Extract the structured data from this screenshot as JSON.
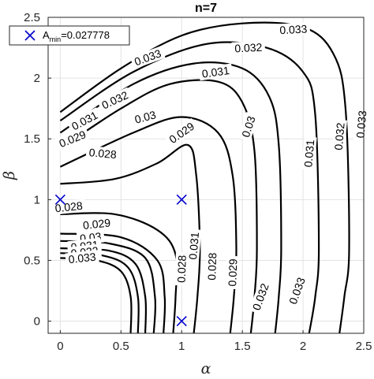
{
  "chart_data": {
    "type": "contour",
    "title": "n=7",
    "xlabel": "α",
    "ylabel": "β",
    "xlim": [
      -0.1,
      2.5
    ],
    "ylim": [
      -0.1,
      2.5
    ],
    "xticks": [
      0,
      0.5,
      1,
      1.5,
      2,
      2.5
    ],
    "xtick_labels": [
      "0",
      "0.5",
      "1",
      "1.5",
      "2",
      "2.5"
    ],
    "yticks": [
      0,
      0.5,
      1,
      1.5,
      2,
      2.5
    ],
    "ytick_labels": [
      "0",
      "0.5",
      "1",
      "1.5",
      "2",
      "2.5"
    ],
    "grid": true,
    "line_color": "#000000",
    "marker_color": "#0000CC",
    "legend": {
      "placement": "top-left",
      "marker": "x",
      "label_main": "A",
      "label_sub": "min",
      "label_value": "=0.027778"
    },
    "minimum_markers": [
      {
        "x": 0,
        "y": 1
      },
      {
        "x": 1,
        "y": 1
      },
      {
        "x": 1,
        "y": 0
      }
    ],
    "contours": [
      {
        "level": "0.028",
        "segments": [
          [
            [
              0,
              0.88
            ],
            [
              0.45,
              0.88
            ],
            [
              0.8,
              0.75
            ],
            [
              0.95,
              0.55
            ],
            [
              0.95,
              0.2
            ],
            [
              0.93,
              -0.1
            ]
          ],
          [
            [
              0,
              1.13
            ],
            [
              0.45,
              1.17
            ],
            [
              0.8,
              1.3
            ],
            [
              1.05,
              1.45
            ],
            [
              1.12,
              1.2
            ],
            [
              1.15,
              0.6
            ],
            [
              1.13,
              0.2
            ],
            [
              1.1,
              -0.1
            ]
          ]
        ],
        "labels": [
          {
            "text": "0.028",
            "x": 0.35,
            "y": 1.38,
            "angle": 5
          },
          {
            "text": "0.028",
            "x": 0.07,
            "y": 0.94,
            "angle": -6
          },
          {
            "text": "0.028",
            "x": 1.0,
            "y": 0.43,
            "angle": -88
          },
          {
            "text": "0.028",
            "x": 1.25,
            "y": 0.45,
            "angle": -88
          }
        ]
      },
      {
        "level": "0.029",
        "segments": [
          [
            [
              0,
              0.72
            ],
            [
              0.5,
              0.69
            ],
            [
              0.8,
              0.5
            ],
            [
              0.86,
              0.2
            ],
            [
              0.85,
              -0.1
            ]
          ],
          [
            [
              0,
              1.27
            ],
            [
              0.6,
              1.55
            ],
            [
              1.0,
              1.68
            ],
            [
              1.3,
              1.55
            ],
            [
              1.42,
              1.2
            ],
            [
              1.45,
              0.6
            ],
            [
              1.43,
              0.2
            ],
            [
              1.4,
              -0.1
            ]
          ]
        ],
        "labels": [
          {
            "text": "0.029",
            "x": 0.1,
            "y": 1.5,
            "angle": -22
          },
          {
            "text": "0.029",
            "x": 1.0,
            "y": 1.55,
            "angle": -35
          },
          {
            "text": "0.029",
            "x": 0.3,
            "y": 0.8,
            "angle": -6
          },
          {
            "text": "0.029",
            "x": 1.42,
            "y": 0.4,
            "angle": -88
          }
        ]
      },
      {
        "level": "0.03",
        "segments": [
          [
            [
              0,
              0.66
            ],
            [
              0.4,
              0.64
            ],
            [
              0.7,
              0.52
            ],
            [
              0.78,
              0.2
            ],
            [
              0.77,
              -0.1
            ]
          ],
          [
            [
              0,
              1.42
            ],
            [
              0.5,
              1.75
            ],
            [
              0.9,
              1.95
            ],
            [
              1.3,
              1.97
            ],
            [
              1.5,
              1.8
            ],
            [
              1.6,
              1.4
            ],
            [
              1.62,
              0.6
            ],
            [
              1.6,
              0.2
            ],
            [
              1.57,
              -0.1
            ]
          ]
        ],
        "labels": [
          {
            "text": "0.03",
            "x": 0.7,
            "y": 1.68,
            "angle": -15
          },
          {
            "text": "0.03",
            "x": 0.25,
            "y": 0.69,
            "angle": -6
          },
          {
            "text": "0.03",
            "x": 1.55,
            "y": 1.6,
            "angle": -72
          }
        ]
      },
      {
        "level": "0.031",
        "segments": [
          [
            [
              0,
              0.6
            ],
            [
              0.4,
              0.58
            ],
            [
              0.62,
              0.47
            ],
            [
              0.7,
              0.2
            ],
            [
              0.7,
              -0.1
            ]
          ],
          [
            [
              0,
              1.55
            ],
            [
              0.6,
              1.95
            ],
            [
              1.1,
              2.12
            ],
            [
              1.5,
              2.08
            ],
            [
              1.72,
              1.85
            ],
            [
              1.8,
              1.45
            ],
            [
              1.82,
              0.6
            ],
            [
              1.8,
              0.2
            ],
            [
              1.77,
              -0.1
            ]
          ]
        ],
        "labels": [
          {
            "text": "0.031",
            "x": 0.2,
            "y": 1.65,
            "angle": -28
          },
          {
            "text": "0.031",
            "x": 1.28,
            "y": 2.05,
            "angle": -8
          },
          {
            "text": "0.031",
            "x": 1.1,
            "y": 0.62,
            "angle": -85
          },
          {
            "text": "0.031",
            "x": 2.05,
            "y": 1.38,
            "angle": -85
          },
          {
            "text": "0.031",
            "x": 0.2,
            "y": 0.62,
            "angle": -6
          }
        ]
      },
      {
        "level": "0.032",
        "segments": [
          [
            [
              0,
              0.56
            ],
            [
              0.35,
              0.54
            ],
            [
              0.56,
              0.44
            ],
            [
              0.64,
              0.2
            ],
            [
              0.64,
              -0.1
            ]
          ],
          [
            [
              0,
              1.65
            ],
            [
              0.6,
              2.05
            ],
            [
              1.2,
              2.28
            ],
            [
              1.7,
              2.25
            ],
            [
              2.0,
              2.05
            ],
            [
              2.1,
              1.7
            ],
            [
              2.13,
              0.6
            ],
            [
              2.1,
              0.2
            ],
            [
              2.05,
              -0.1
            ]
          ]
        ],
        "labels": [
          {
            "text": "0.032",
            "x": 0.45,
            "y": 1.82,
            "angle": -25
          },
          {
            "text": "0.032",
            "x": 1.55,
            "y": 2.25,
            "angle": -3
          },
          {
            "text": "0.032",
            "x": 2.3,
            "y": 1.52,
            "angle": -85
          },
          {
            "text": "0.032",
            "x": 1.65,
            "y": 0.2,
            "angle": -70
          },
          {
            "text": "0.032",
            "x": 0.2,
            "y": 0.57,
            "angle": -6
          }
        ]
      },
      {
        "level": "0.033",
        "segments": [
          [
            [
              0,
              0.52
            ],
            [
              0.3,
              0.5
            ],
            [
              0.5,
              0.41
            ],
            [
              0.58,
              0.2
            ],
            [
              0.58,
              -0.1
            ]
          ],
          [
            [
              0,
              1.72
            ],
            [
              0.5,
              2.08
            ],
            [
              1.0,
              2.35
            ],
            [
              1.5,
              2.45
            ],
            [
              2.0,
              2.42
            ],
            [
              2.25,
              2.2
            ],
            [
              2.35,
              1.75
            ],
            [
              2.38,
              0.6
            ],
            [
              2.34,
              0.2
            ],
            [
              2.3,
              -0.1
            ]
          ]
        ],
        "labels": [
          {
            "text": "0.033",
            "x": 0.72,
            "y": 2.17,
            "angle": -20
          },
          {
            "text": "0.033",
            "x": 1.92,
            "y": 2.4,
            "angle": -3
          },
          {
            "text": "0.033",
            "x": 2.48,
            "y": 1.62,
            "angle": -85
          },
          {
            "text": "0.033",
            "x": 1.95,
            "y": 0.25,
            "angle": -70
          },
          {
            "text": "0.033",
            "x": 0.18,
            "y": 0.52,
            "angle": -6
          }
        ]
      }
    ]
  }
}
